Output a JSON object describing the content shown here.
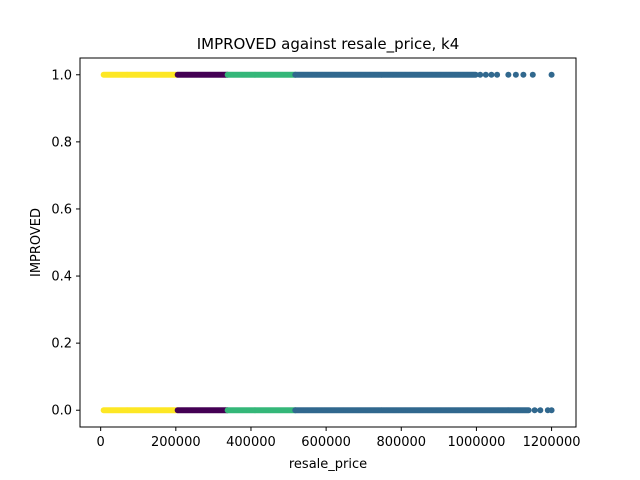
{
  "chart_data": {
    "type": "scatter",
    "title": "IMPROVED against resale_price, k4",
    "xlabel": "resale_price",
    "ylabel": "IMPROVED",
    "xlim": [
      -55000,
      1265000
    ],
    "ylim": [
      -0.05,
      1.05
    ],
    "x_ticks": [
      0,
      200000,
      400000,
      600000,
      800000,
      1000000,
      1200000
    ],
    "x_tick_labels": [
      "0",
      "200000",
      "400000",
      "600000",
      "800000",
      "1000000",
      "1200000"
    ],
    "y_ticks": [
      0.0,
      0.2,
      0.4,
      0.6,
      0.8,
      1.0
    ],
    "y_tick_labels": [
      "0.0",
      "0.2",
      "0.4",
      "0.6",
      "0.8",
      "1.0"
    ],
    "grid": false,
    "legend": "none",
    "clusters": [
      {
        "color": "#fde725",
        "y_values": [
          0,
          1
        ],
        "x_range": [
          8000,
          205000
        ]
      },
      {
        "color": "#440154",
        "y_values": [
          0,
          1
        ],
        "x_range": [
          205000,
          338000
        ]
      },
      {
        "color": "#35b779",
        "y_values": [
          0,
          1
        ],
        "x_range": [
          338000,
          518000
        ]
      },
      {
        "color": "#31688e",
        "y_values": [
          1
        ],
        "x_range": [
          518000,
          1000000
        ],
        "outliers": [
          1010000,
          1025000,
          1040000,
          1055000,
          1085000,
          1105000,
          1125000,
          1150000,
          1200000
        ]
      },
      {
        "color": "#31688e",
        "y_values": [
          0
        ],
        "x_range": [
          518000,
          1140000
        ],
        "outliers": [
          1155000,
          1170000,
          1190000,
          1200000
        ]
      }
    ]
  }
}
